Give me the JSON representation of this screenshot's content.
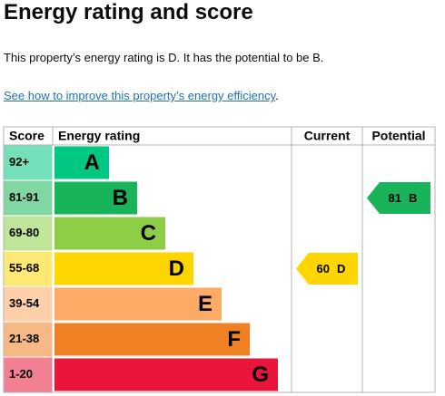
{
  "header": {
    "title": "Energy rating and score"
  },
  "summary": "This property’s energy rating is D. It has the potential to be B.",
  "link": "See how to improve this property’s energy efficiency",
  "link_suffix": ".",
  "table": {
    "columns": [
      "Score",
      "Energy rating",
      "Current",
      "Potential"
    ],
    "rows": [
      {
        "score": "92+",
        "rating": "A",
        "color": "#00c781"
      },
      {
        "score": "81-91",
        "rating": "B",
        "color": "#19b459"
      },
      {
        "score": "69-80",
        "rating": "C",
        "color": "#8dce46"
      },
      {
        "score": "55-68",
        "rating": "D",
        "color": "#ffd500"
      },
      {
        "score": "39-54",
        "rating": "E",
        "color": "#fcaa65"
      },
      {
        "score": "21-38",
        "rating": "F",
        "color": "#ef8023"
      },
      {
        "score": "1-20",
        "rating": "G",
        "color": "#e9153b"
      }
    ],
    "current": {
      "score": 60,
      "rating": "D"
    },
    "potential": {
      "score": 81,
      "rating": "B"
    }
  }
}
